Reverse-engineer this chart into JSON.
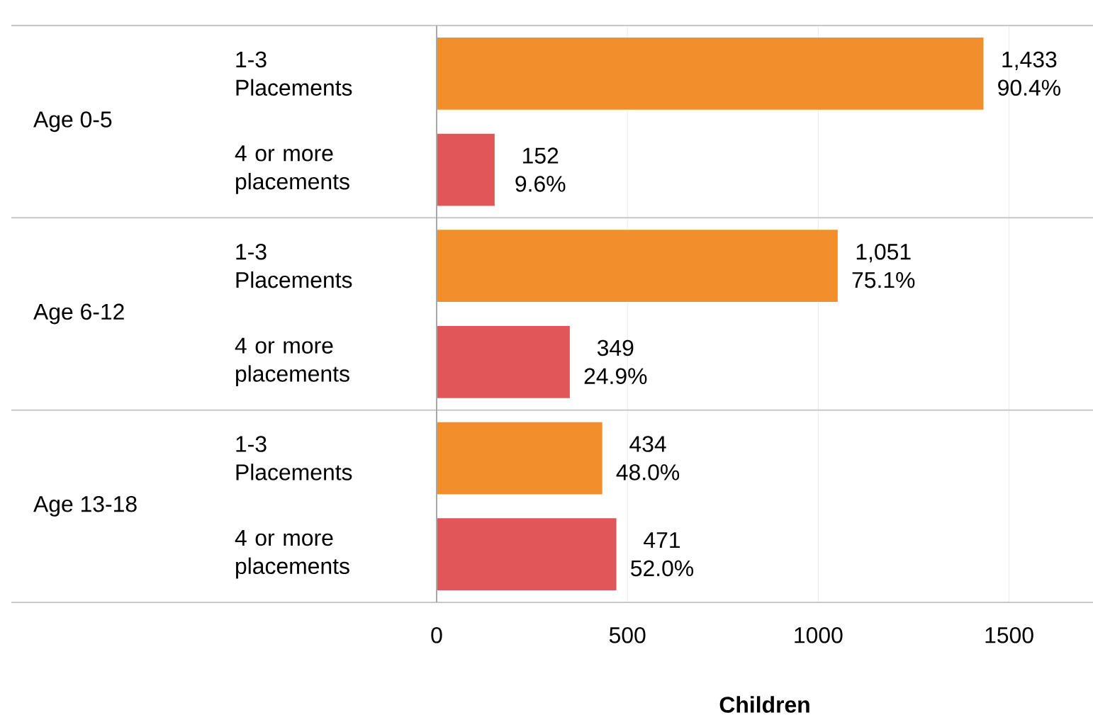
{
  "chart_data": {
    "type": "bar",
    "orientation": "horizontal",
    "xlabel": "Children",
    "categories": [
      "1-3 Placements",
      "4 or more placements",
      "1-3 Placements",
      "4 or more placements",
      "1-3 Placements",
      "4 or more placements"
    ],
    "values": [
      1433,
      152,
      1051,
      349,
      434,
      471
    ],
    "colors": [
      "#f28e2b",
      "#e15759",
      "#f28e2b",
      "#e15759",
      "#f28e2b",
      "#e15759"
    ],
    "value_labels": [
      "1,433 90.4%",
      "152 9.6%",
      "1,051 75.1%",
      "349 24.9%",
      "434 48.0%",
      "471 52.0%"
    ],
    "annotations": [
      "Age 0-5",
      "Age 6-12",
      "Age 13-18"
    ],
    "xlim": [
      0,
      1720
    ],
    "xticks": [
      0,
      500,
      1000,
      1500
    ],
    "grid": "x"
  }
}
